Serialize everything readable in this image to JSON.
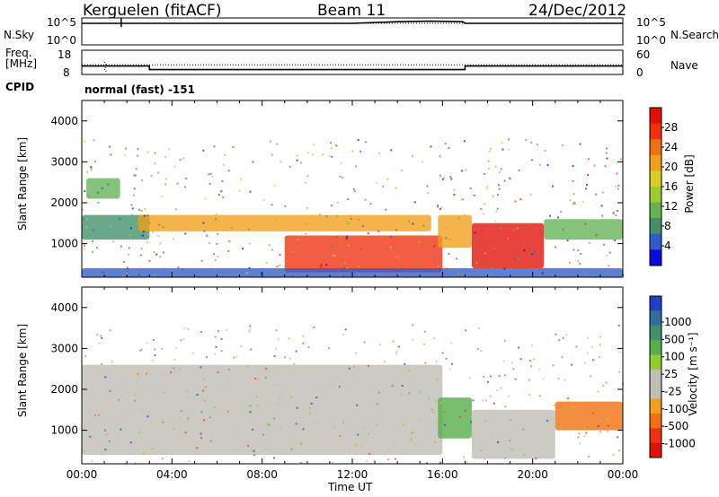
{
  "header": {
    "station": "Kerguelen (fitACF)",
    "beam": "Beam 11",
    "date": "24/Dec/2012"
  },
  "top_panel": {
    "left_label": "N.Sky",
    "left_ticks": [
      "10^5",
      "10^0"
    ],
    "right_ticks": [
      "10^5",
      "10^0"
    ],
    "right_label": "N.Search"
  },
  "freq_panel": {
    "left_label_1": "Freq.",
    "left_label_2": "[MHz]",
    "left_ticks": [
      "18",
      "8"
    ],
    "right_ticks": [
      "60",
      "0"
    ],
    "right_label": "Nave"
  },
  "cpid": {
    "label": "CPID",
    "value": "normal (fast) -151"
  },
  "power_panel": {
    "ylabel": "Slant Range [km]",
    "cbar_label": "Power [dB]"
  },
  "velocity_panel": {
    "ylabel": "Slant Range [km]",
    "cbar_label": "Velocity [m s⁻¹]"
  },
  "xaxis": {
    "label": "Time UT",
    "ticks": [
      "00:00",
      "04:00",
      "08:00",
      "12:00",
      "16:00",
      "20:00",
      "00:00"
    ]
  },
  "chart_data": [
    {
      "type": "line",
      "title": "N.Sky / N.Search",
      "x_range": [
        "00:00",
        "24:00"
      ],
      "series": [
        {
          "name": "N.Sky",
          "style": "solid",
          "x": [
            0,
            1.7,
            12,
            14,
            15.5,
            16.9,
            17,
            24
          ],
          "y_log10": [
            4.0,
            4.0,
            4.0,
            4.3,
            4.4,
            4.3,
            4.0,
            4.0
          ]
        },
        {
          "name": "N.Search",
          "style": "dotted",
          "x": [
            0,
            24
          ],
          "y_log10": [
            4.0,
            4.0
          ]
        }
      ]
    },
    {
      "type": "line",
      "title": "Freq. / Nave",
      "x_range": [
        "00:00",
        "24:00"
      ],
      "series": [
        {
          "name": "Freq. [MHz]",
          "style": "solid",
          "x": [
            0,
            3,
            3,
            17,
            17,
            24
          ],
          "y": [
            11.5,
            11.5,
            10,
            10,
            11.5,
            11.5
          ],
          "ylim": [
            8,
            18
          ]
        },
        {
          "name": "Nave",
          "style": "dotted",
          "x": [
            0,
            24
          ],
          "y": [
            24,
            24
          ],
          "ylim": [
            0,
            60
          ]
        }
      ]
    },
    {
      "type": "heatmap",
      "title": "Power [dB]",
      "x_range": [
        "00:00",
        "24:00"
      ],
      "ylim": [
        180,
        4500
      ],
      "yticks": [
        1000,
        2000,
        3000,
        4000
      ],
      "colorbar": {
        "ticks": [
          4,
          8,
          12,
          16,
          20,
          24,
          28
        ],
        "colors": [
          "#0a0ae0",
          "#2f5bc8",
          "#3f8f68",
          "#63b254",
          "#9ccc2e",
          "#d9cf22",
          "#f0a018",
          "#f07010",
          "#f03010",
          "#e01008"
        ]
      },
      "features": [
        {
          "t_start": 0.2,
          "t_end": 1.7,
          "range": [
            2100,
            2600
          ],
          "level_db": 12
        },
        {
          "t_start": 0,
          "t_end": 3,
          "range": [
            1100,
            1700
          ],
          "level_db": 8
        },
        {
          "t_start": 2.5,
          "t_end": 15.5,
          "range": [
            1300,
            1700
          ],
          "level_db": 22
        },
        {
          "t_start": 9,
          "t_end": 16,
          "range": [
            300,
            1200
          ],
          "level_db": 28
        },
        {
          "t_start": 15.8,
          "t_end": 17.3,
          "range": [
            900,
            1700
          ],
          "level_db": 22
        },
        {
          "t_start": 17.3,
          "t_end": 20.5,
          "range": [
            400,
            1500
          ],
          "level_db": 30
        },
        {
          "t_start": 20.5,
          "t_end": 24,
          "range": [
            1100,
            1600
          ],
          "level_db": 12
        },
        {
          "t_start": 0,
          "t_end": 24,
          "range": [
            180,
            400
          ],
          "level_db": 6
        }
      ]
    },
    {
      "type": "heatmap",
      "title": "Velocity [m s⁻¹]",
      "x_range": [
        "00:00",
        "24:00"
      ],
      "ylim": [
        180,
        4500
      ],
      "yticks": [
        1000,
        2000,
        3000,
        4000
      ],
      "colorbar": {
        "ticks": [
          1000,
          500,
          100,
          25,
          -25,
          -100,
          -500,
          -1000
        ],
        "colors": [
          "#2040c8",
          "#2f6f9a",
          "#3f8f68",
          "#57ad4a",
          "#8fcc2e",
          "#bebeb4",
          "#bebeb4",
          "#f0a018",
          "#f07010",
          "#f03010",
          "#e01008"
        ]
      },
      "features": [
        {
          "t_start": 0,
          "t_end": 16,
          "range": [
            400,
            2600
          ],
          "velocity": 0
        },
        {
          "t_start": 15.8,
          "t_end": 17.3,
          "range": [
            800,
            1800
          ],
          "velocity": 150
        },
        {
          "t_start": 17.3,
          "t_end": 21,
          "range": [
            300,
            1500
          ],
          "velocity": 0
        },
        {
          "t_start": 21,
          "t_end": 24,
          "range": [
            1000,
            1700
          ],
          "velocity": -300
        }
      ]
    }
  ]
}
